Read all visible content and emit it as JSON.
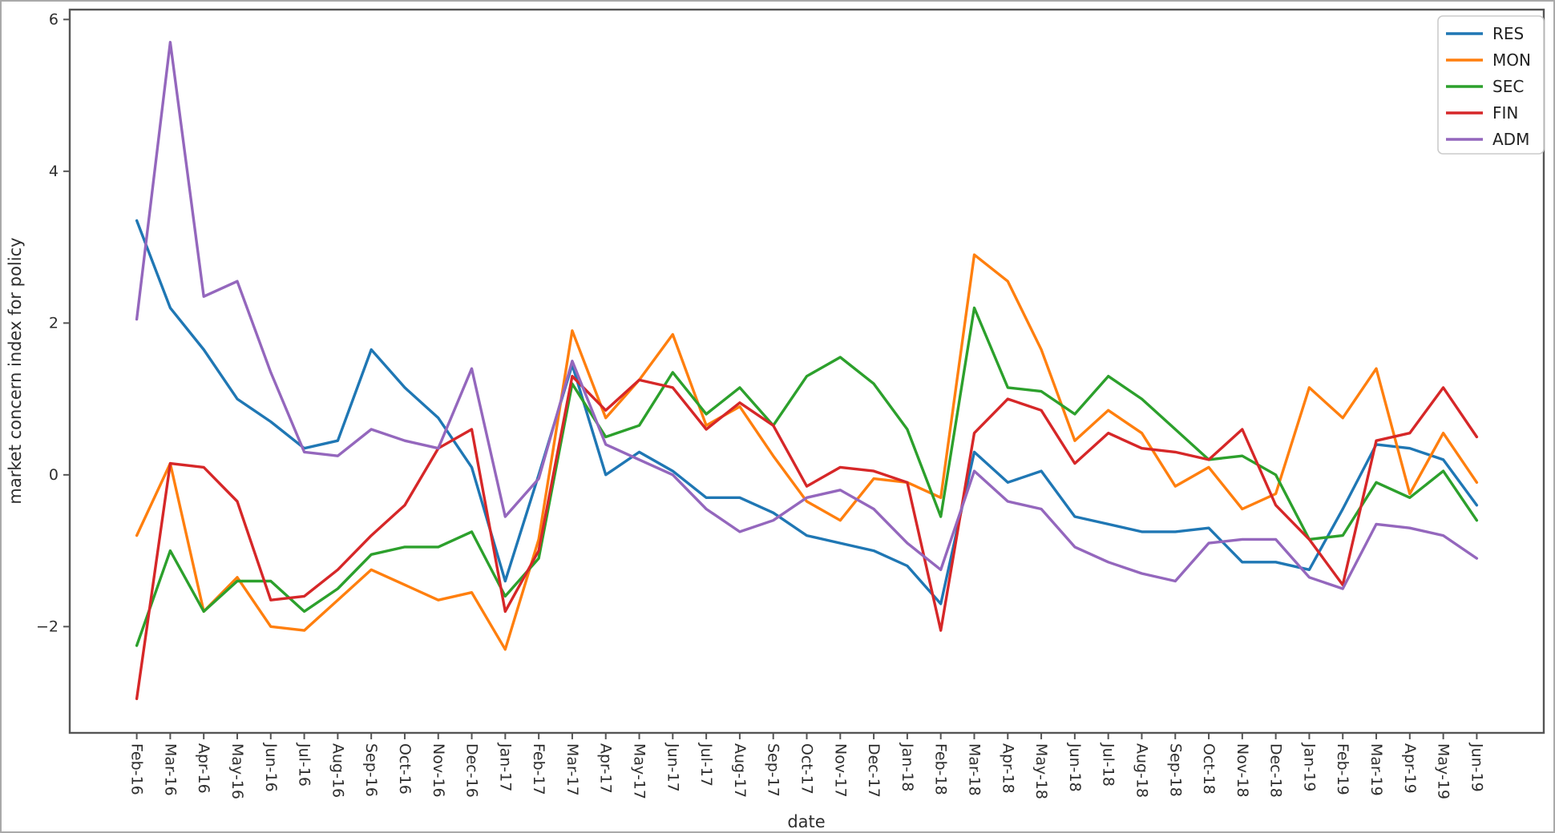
{
  "figure": {
    "background": "#ffffff",
    "border_color": "#a9a9a9",
    "spine_color": "#555555",
    "text_color": "#2e2e2e"
  },
  "chart_data": {
    "type": "line",
    "title": "",
    "xlabel": "date",
    "ylabel": "market concern index for policy",
    "grid": false,
    "legend_position": "upper right",
    "y_ticks": [
      6,
      4,
      2,
      0,
      -2
    ],
    "ylim": [
      -3.4,
      6.13
    ],
    "xlim_padding_months": 2,
    "categories": [
      "Feb-16",
      "Mar-16",
      "Apr-16",
      "May-16",
      "Jun-16",
      "Jul-16",
      "Aug-16",
      "Sep-16",
      "Oct-16",
      "Nov-16",
      "Dec-16",
      "Jan-17",
      "Feb-17",
      "Mar-17",
      "Apr-17",
      "May-17",
      "Jun-17",
      "Jul-17",
      "Aug-17",
      "Sep-17",
      "Oct-17",
      "Nov-17",
      "Dec-17",
      "Jan-18",
      "Feb-18",
      "Mar-18",
      "Apr-18",
      "May-18",
      "Jun-18",
      "Jul-18",
      "Aug-18",
      "Sep-18",
      "Oct-18",
      "Nov-18",
      "Dec-18",
      "Jan-19",
      "Feb-19",
      "Mar-19",
      "Apr-19",
      "May-19",
      "Jun-19"
    ],
    "series": [
      {
        "name": "RES",
        "color": "#1f77b4",
        "values": [
          3.35,
          2.2,
          1.65,
          1.0,
          0.7,
          0.35,
          0.45,
          1.65,
          1.15,
          0.75,
          0.1,
          -1.4,
          0.0,
          1.45,
          0.0,
          0.3,
          0.05,
          -0.3,
          -0.3,
          -0.5,
          -0.8,
          -0.9,
          -1.0,
          -1.2,
          -1.7,
          0.3,
          -0.1,
          0.05,
          -0.55,
          -0.65,
          -0.75,
          -0.75,
          -0.7,
          -1.15,
          -1.15,
          -1.25,
          -0.45,
          0.4,
          0.35,
          0.2,
          -0.4
        ]
      },
      {
        "name": "MON",
        "color": "#ff7f0e",
        "values": [
          -0.8,
          0.15,
          -1.8,
          -1.35,
          -2.0,
          -2.05,
          -1.65,
          -1.25,
          -1.45,
          -1.65,
          -1.55,
          -2.3,
          -0.85,
          1.9,
          0.75,
          1.25,
          1.85,
          0.65,
          0.9,
          0.25,
          -0.35,
          -0.6,
          -0.05,
          -0.1,
          -0.3,
          2.9,
          2.55,
          1.65,
          0.45,
          0.85,
          0.55,
          -0.15,
          0.1,
          -0.45,
          -0.25,
          1.15,
          0.75,
          1.4,
          -0.25,
          0.55,
          -0.1
        ]
      },
      {
        "name": "SEC",
        "color": "#2ca02c",
        "values": [
          -2.25,
          -1.0,
          -1.8,
          -1.4,
          -1.4,
          -1.8,
          -1.5,
          -1.05,
          -0.95,
          -0.95,
          -0.75,
          -1.6,
          -1.1,
          1.2,
          0.5,
          0.65,
          1.35,
          0.8,
          1.15,
          0.65,
          1.3,
          1.55,
          1.2,
          0.6,
          -0.55,
          2.2,
          1.15,
          1.1,
          0.8,
          1.3,
          1.0,
          0.6,
          0.2,
          0.25,
          0.0,
          -0.85,
          -0.8,
          -0.1,
          -0.3,
          0.05,
          -0.6
        ]
      },
      {
        "name": "FIN",
        "color": "#d62728",
        "values": [
          -2.95,
          0.15,
          0.1,
          -0.35,
          -1.65,
          -1.6,
          -1.25,
          -0.8,
          -0.4,
          0.35,
          0.6,
          -1.8,
          -1.0,
          1.3,
          0.85,
          1.25,
          1.15,
          0.6,
          0.95,
          0.65,
          -0.15,
          0.1,
          0.05,
          -0.1,
          -2.05,
          0.55,
          1.0,
          0.85,
          0.15,
          0.55,
          0.35,
          0.3,
          0.2,
          0.6,
          -0.4,
          -0.85,
          -1.45,
          0.45,
          0.55,
          1.15,
          0.5
        ]
      },
      {
        "name": "ADM",
        "color": "#9467bd",
        "values": [
          2.05,
          5.7,
          2.35,
          2.55,
          1.35,
          0.3,
          0.25,
          0.6,
          0.45,
          0.35,
          1.4,
          -0.55,
          -0.05,
          1.5,
          0.4,
          0.2,
          0.0,
          -0.45,
          -0.75,
          -0.6,
          -0.3,
          -0.2,
          -0.45,
          -0.9,
          -1.25,
          0.05,
          -0.35,
          -0.45,
          -0.95,
          -1.15,
          -1.3,
          -1.4,
          -0.9,
          -0.85,
          -0.85,
          -1.35,
          -1.5,
          -0.65,
          -0.7,
          -0.8,
          -1.1
        ]
      }
    ]
  }
}
